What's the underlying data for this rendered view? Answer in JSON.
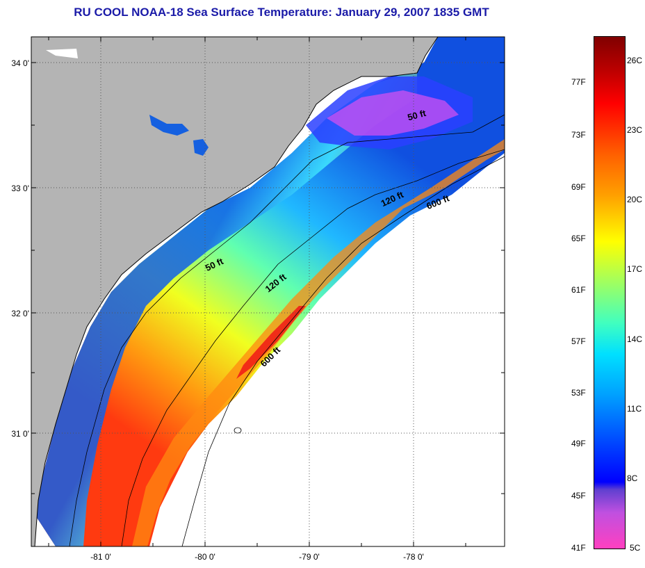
{
  "title": "RU COOL  NOAA-18  Sea Surface Temperature:  January 29, 2007 1835 GMT",
  "map": {
    "lat_labels": [
      "34 0'",
      "33 0'",
      "32 0'",
      "31 0'"
    ],
    "lon_labels": [
      "-81 0'",
      "-80 0'",
      "-79 0'",
      "-78 0'"
    ],
    "contour_labels": [
      "50 ft",
      "50 ft",
      "120 ft",
      "120 ft",
      "600 ft",
      "600 ft"
    ],
    "colors": {
      "land": "#b4b4b4",
      "no_data": "#ffffff",
      "frame": "#000000"
    }
  },
  "colorbar": {
    "fahrenheit": [
      "77F",
      "73F",
      "69F",
      "65F",
      "61F",
      "57F",
      "53F",
      "49F",
      "45F",
      "41F"
    ],
    "celsius": [
      "26C",
      "23C",
      "20C",
      "17C",
      "14C",
      "11C",
      "8C",
      "5C"
    ]
  }
}
